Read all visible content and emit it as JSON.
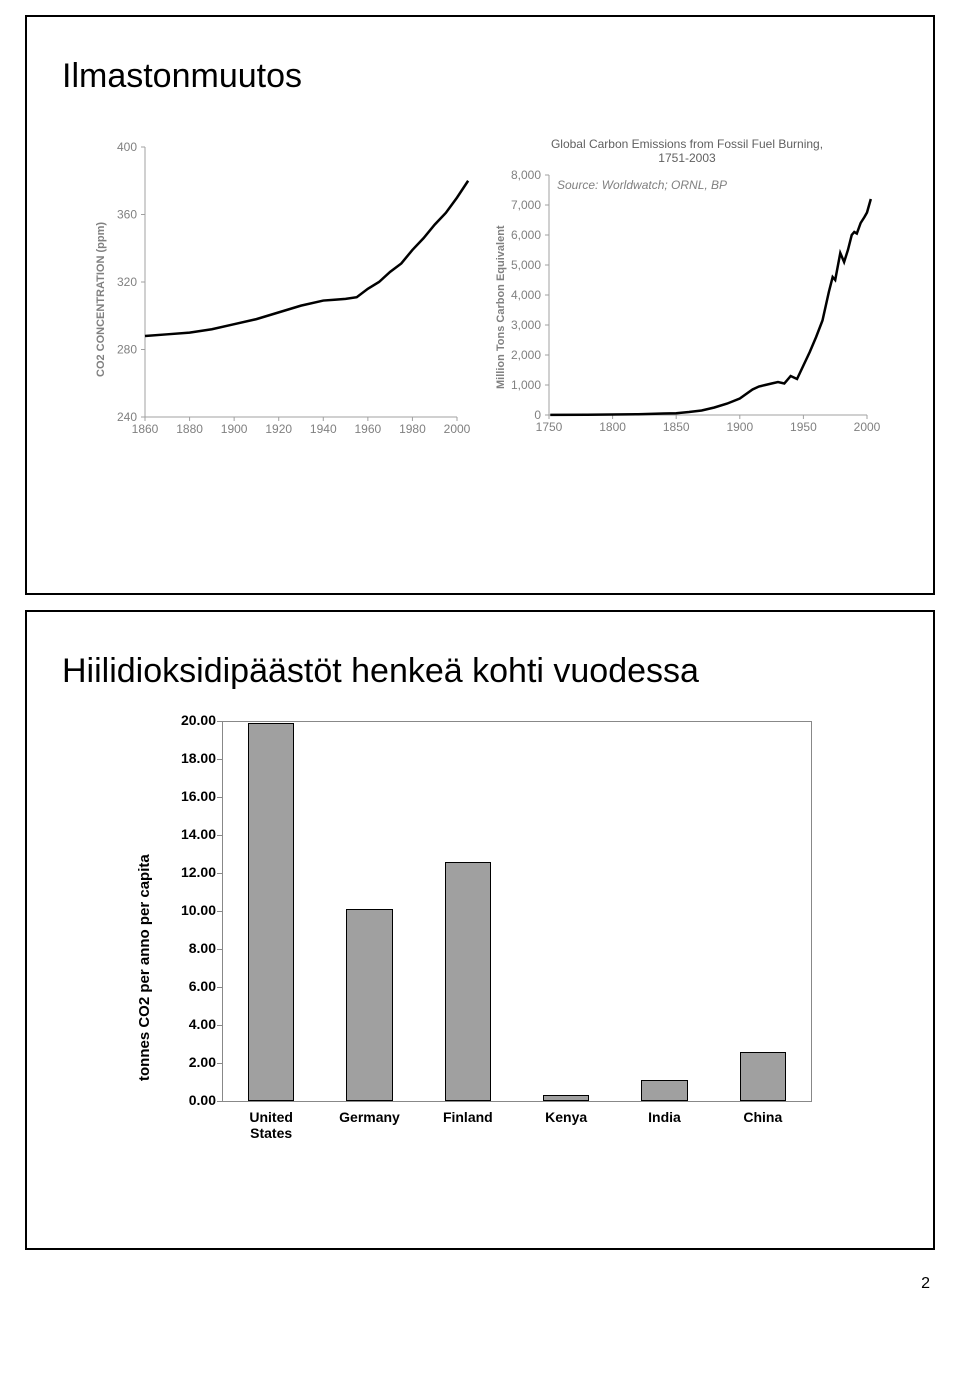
{
  "slide1": {
    "title": "Ilmastonmuutos",
    "chart_left": {
      "type": "line",
      "ylabel": "CO2 CONCENTRATION (ppm)",
      "xlim": [
        1860,
        2000
      ],
      "ylim": [
        240,
        400
      ],
      "xticks": [
        1860,
        1880,
        1900,
        1920,
        1940,
        1960,
        1980,
        2000
      ],
      "yticks": [
        240,
        280,
        320,
        360,
        400
      ],
      "series": [
        [
          1860,
          288
        ],
        [
          1870,
          289
        ],
        [
          1880,
          290
        ],
        [
          1890,
          292
        ],
        [
          1900,
          295
        ],
        [
          1910,
          298
        ],
        [
          1920,
          302
        ],
        [
          1930,
          306
        ],
        [
          1940,
          309
        ],
        [
          1945,
          309.5
        ],
        [
          1950,
          310
        ],
        [
          1955,
          311
        ],
        [
          1960,
          316
        ],
        [
          1965,
          320
        ],
        [
          1970,
          326
        ],
        [
          1975,
          331
        ],
        [
          1980,
          339
        ],
        [
          1985,
          346
        ],
        [
          1990,
          354
        ],
        [
          1995,
          361
        ],
        [
          2000,
          370
        ],
        [
          2005,
          380
        ]
      ],
      "axis_color": "#a0a0a0",
      "series_color": "#000000",
      "tick_fontsize": 11
    },
    "chart_right": {
      "type": "line",
      "title_line1": "Global Carbon Emissions from Fossil Fuel Burning,",
      "title_line2": "1751-2003",
      "source": "Source: Worldwatch; ORNL, BP",
      "ylabel": "Million Tons Carbon Equivalent",
      "xlim": [
        1750,
        2000
      ],
      "ylim": [
        0,
        8000
      ],
      "xticks": [
        1750,
        1800,
        1850,
        1900,
        1950,
        2000
      ],
      "yticks": [
        0,
        1000,
        2000,
        3000,
        4000,
        5000,
        6000,
        7000,
        8000
      ],
      "series": [
        [
          1751,
          3
        ],
        [
          1780,
          8
        ],
        [
          1800,
          15
        ],
        [
          1820,
          25
        ],
        [
          1840,
          50
        ],
        [
          1850,
          60
        ],
        [
          1860,
          100
        ],
        [
          1870,
          150
        ],
        [
          1880,
          250
        ],
        [
          1890,
          380
        ],
        [
          1900,
          550
        ],
        [
          1910,
          850
        ],
        [
          1915,
          950
        ],
        [
          1920,
          1000
        ],
        [
          1925,
          1050
        ],
        [
          1930,
          1100
        ],
        [
          1935,
          1050
        ],
        [
          1940,
          1300
        ],
        [
          1945,
          1200
        ],
        [
          1950,
          1650
        ],
        [
          1955,
          2100
        ],
        [
          1960,
          2600
        ],
        [
          1965,
          3150
        ],
        [
          1970,
          4100
        ],
        [
          1973,
          4600
        ],
        [
          1975,
          4500
        ],
        [
          1979,
          5400
        ],
        [
          1982,
          5100
        ],
        [
          1985,
          5500
        ],
        [
          1988,
          6000
        ],
        [
          1990,
          6100
        ],
        [
          1992,
          6050
        ],
        [
          1995,
          6400
        ],
        [
          1998,
          6600
        ],
        [
          2000,
          6750
        ],
        [
          2003,
          7200
        ]
      ],
      "axis_color": "#a0a0a0",
      "series_color": "#000000",
      "tick_fontsize": 11
    }
  },
  "slide2": {
    "title": "Hiilidioksidipäästöt henkeä kohti vuodessa",
    "barchart": {
      "type": "bar",
      "ylabel": "tonnes CO2 per anno per capita",
      "ylim": [
        0,
        20
      ],
      "ytick_step": 2,
      "yticks": [
        "0.00",
        "2.00",
        "4.00",
        "6.00",
        "8.00",
        "10.00",
        "12.00",
        "14.00",
        "16.00",
        "18.00",
        "20.00"
      ],
      "categories": [
        "United\nStates",
        "Germany",
        "Finland",
        "Kenya",
        "India",
        "China"
      ],
      "values": [
        19.9,
        10.1,
        12.6,
        0.3,
        1.1,
        2.6
      ],
      "bar_fill": "#a0a0a0",
      "bar_border": "#000000",
      "plot_border": "#888888",
      "bar_width": 0.47,
      "label_fontsize": 14,
      "label_fontweight": "bold"
    }
  },
  "page_number": "2"
}
